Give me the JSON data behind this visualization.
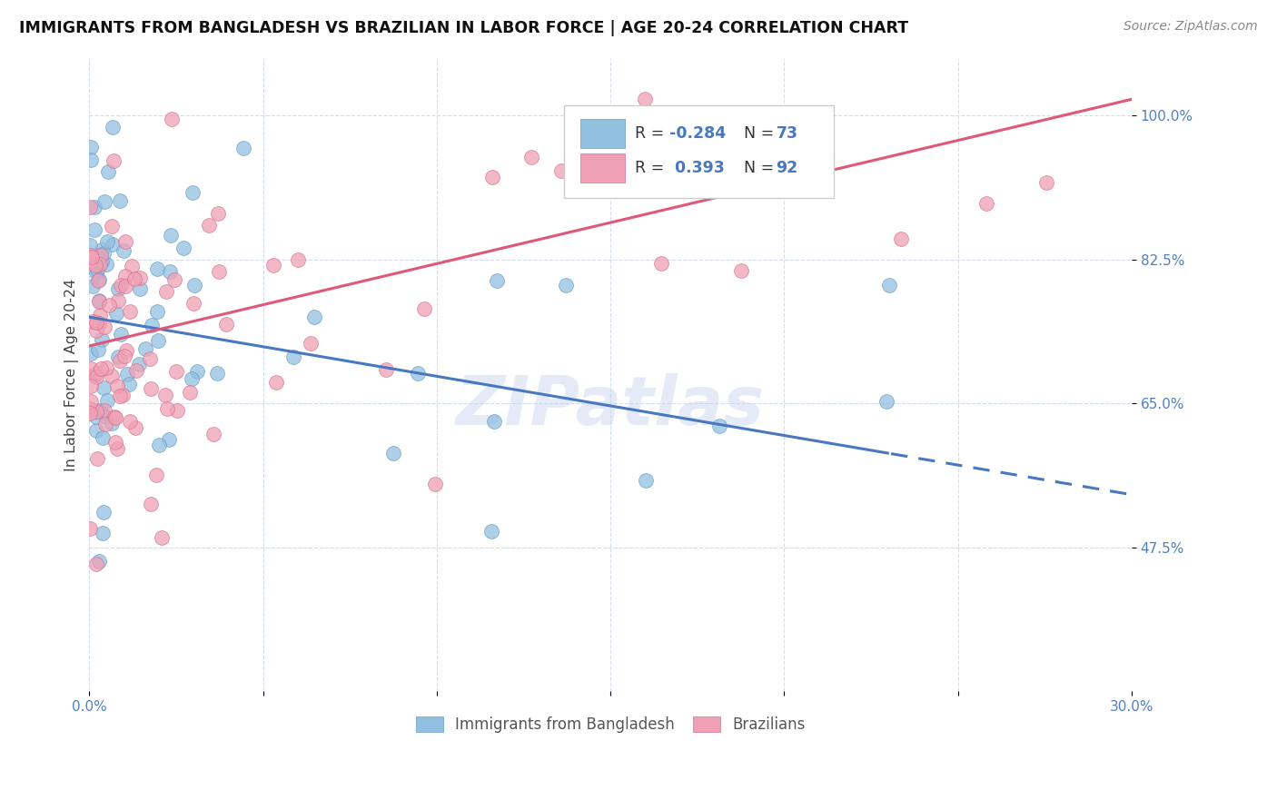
{
  "title": "IMMIGRANTS FROM BANGLADESH VS BRAZILIAN IN LABOR FORCE | AGE 20-24 CORRELATION CHART",
  "source": "Source: ZipAtlas.com",
  "ylabel": "In Labor Force | Age 20-24",
  "ylabel_ticks": [
    47.5,
    65.0,
    82.5,
    100.0
  ],
  "ylabel_tick_labels": [
    "47.5%",
    "65.0%",
    "82.5%",
    "100.0%"
  ],
  "xmin": 0.0,
  "xmax": 30.0,
  "ymin": 30.0,
  "ymax": 107.0,
  "bangladesh_color": "#92C0E0",
  "bangladesh_edge": "#6899C8",
  "brazil_color": "#F0A0B4",
  "brazil_edge": "#D87090",
  "trend_bangladesh_color": "#4878C0",
  "trend_brazil_color": "#E05878",
  "watermark": "ZIPatlas",
  "legend_label_bang": "Immigrants from Bangladesh",
  "legend_label_braz": "Brazilians",
  "R_bang": -0.284,
  "N_bang": 73,
  "R_braz": 0.393,
  "N_braz": 92,
  "legend_text_color": "#333333",
  "legend_value_color": "#4878C0",
  "tick_color": "#5080C0",
  "title_color": "#111111",
  "source_color": "#888888",
  "grid_color": "#C8D4E8"
}
